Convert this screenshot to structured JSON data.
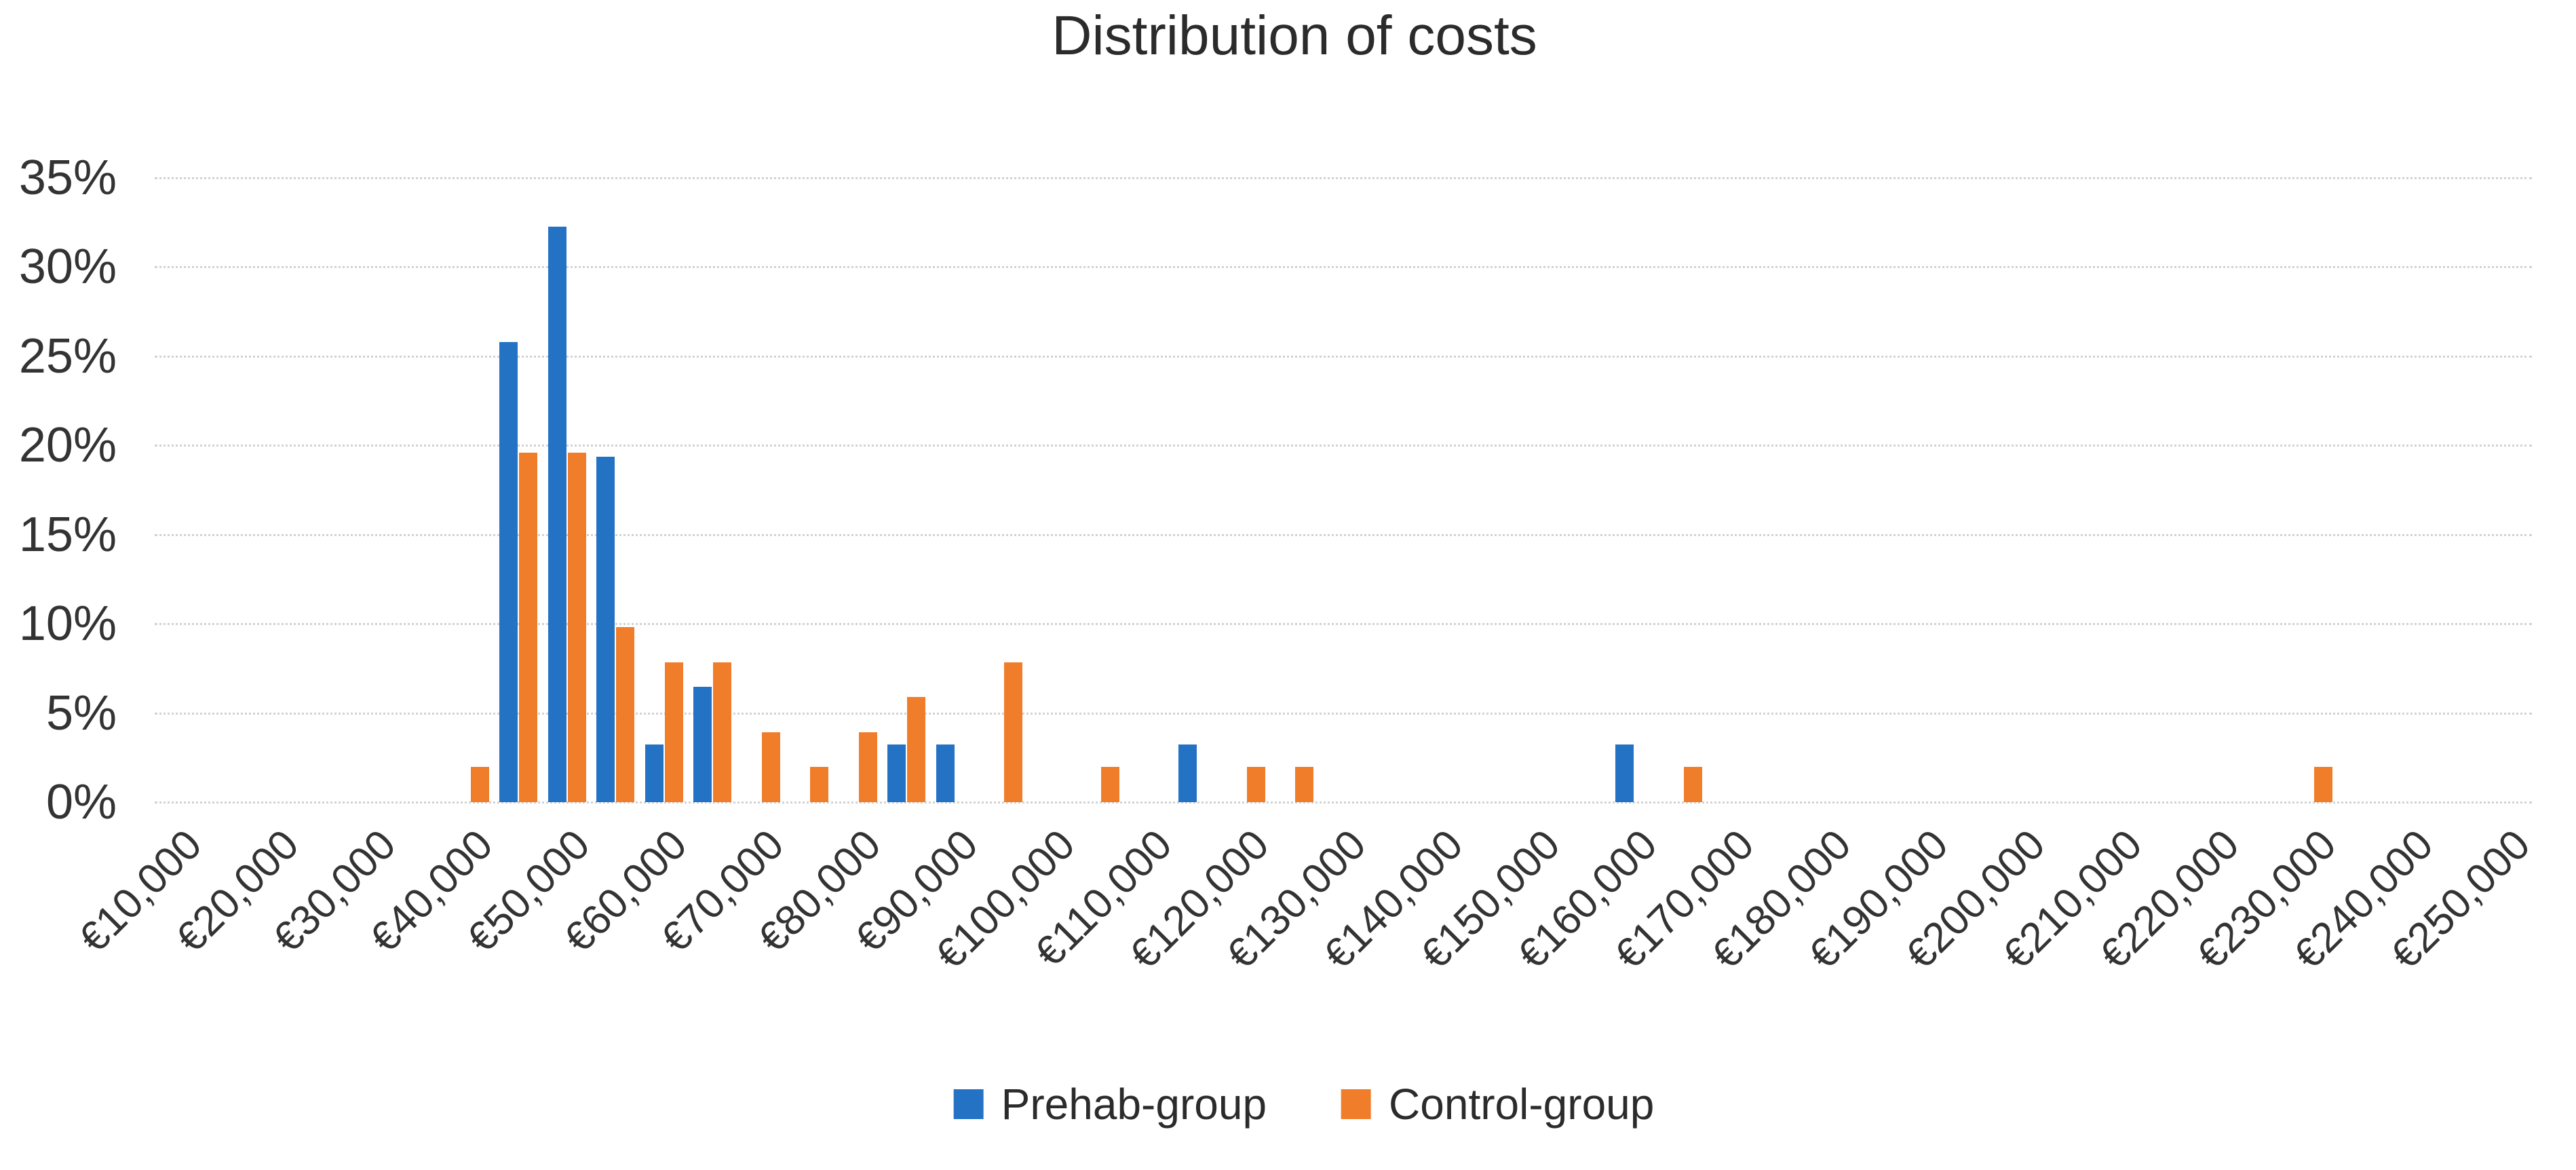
{
  "title": "Distribution of costs",
  "colors": {
    "prehab_blue": "#2472c4",
    "control_orange": "#f07d2a",
    "gridline": "#d2d2d2",
    "axis_text": "#333333",
    "title_text": "#2b2b2b"
  },
  "y_axis": {
    "unit": "%",
    "tick_labels": [
      "35%",
      "30%",
      "25%",
      "20%",
      "15%",
      "10%",
      "5%",
      "0%"
    ],
    "max": 35,
    "min": 0,
    "step": 5
  },
  "x_axis": {
    "labels": [
      "€10,000",
      "€20,000",
      "€30,000",
      "€40,000",
      "€50,000",
      "€60,000",
      "€70,000",
      "€80,000",
      "€90,000",
      "€100,000",
      "€110,000",
      "€120,000",
      "€130,000",
      "€140,000",
      "€150,000",
      "€160,000",
      "€170,000",
      "€180,000",
      "€190,000",
      "€200,000",
      "€210,000",
      "€220,000",
      "€230,000",
      "€240,000",
      "€250,000"
    ],
    "labeled_every_n_categories": 2
  },
  "legend": {
    "items": [
      {
        "label": "Prehab-group",
        "color": "#2472c4"
      },
      {
        "label": "Control-group",
        "color": "#f07d2a"
      }
    ]
  },
  "chart_data": {
    "type": "bar",
    "title": "Distribution of costs",
    "xlabel": "",
    "ylabel": "",
    "ylim": [
      0,
      35
    ],
    "grid": "dotted horizontal every 5%",
    "legend_position": "bottom-center",
    "x_start": 10000,
    "x_step": 5000,
    "n_categories": 49,
    "x": [
      10000,
      15000,
      20000,
      25000,
      30000,
      35000,
      40000,
      45000,
      50000,
      55000,
      60000,
      65000,
      70000,
      75000,
      80000,
      85000,
      90000,
      95000,
      100000,
      105000,
      110000,
      115000,
      120000,
      125000,
      130000,
      135000,
      140000,
      145000,
      150000,
      155000,
      160000,
      165000,
      170000,
      175000,
      180000,
      185000,
      190000,
      195000,
      200000,
      205000,
      210000,
      215000,
      220000,
      225000,
      230000,
      235000,
      240000,
      245000,
      250000
    ],
    "series": [
      {
        "name": "Prehab-group",
        "color": "#2472c4",
        "values": [
          0,
          0,
          0,
          0,
          0,
          0,
          0,
          25.81,
          32.26,
          19.35,
          3.23,
          6.45,
          0,
          0,
          0,
          3.23,
          3.23,
          0,
          0,
          0,
          0,
          3.23,
          0,
          0,
          0,
          0,
          0,
          0,
          0,
          0,
          3.23,
          0,
          0,
          0,
          0,
          0,
          0,
          0,
          0,
          0,
          0,
          0,
          0,
          0,
          0,
          0,
          0,
          0,
          0
        ]
      },
      {
        "name": "Control-group",
        "color": "#f07d2a",
        "values": [
          0,
          0,
          0,
          0,
          0,
          0,
          1.96,
          19.61,
          19.61,
          9.8,
          7.84,
          7.84,
          3.92,
          1.96,
          3.92,
          5.88,
          0,
          7.84,
          0,
          1.96,
          0,
          0,
          1.96,
          1.96,
          0,
          0,
          0,
          0,
          0,
          0,
          0,
          1.96,
          0,
          0,
          0,
          0,
          0,
          0,
          0,
          0,
          0,
          0,
          0,
          0,
          1.96,
          0,
          0,
          0,
          0
        ]
      }
    ]
  }
}
